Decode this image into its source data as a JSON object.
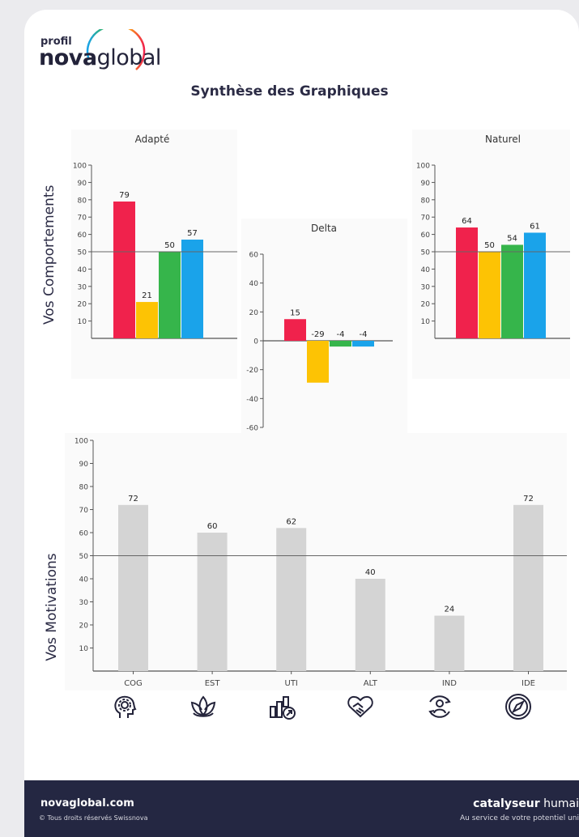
{
  "brand": {
    "small": "profil",
    "name_bold": "nova",
    "name_light": "global"
  },
  "title": "Synthèse des Graphiques",
  "ylabel_top": "Vos Comportements",
  "ylabel_bottom": "Vos Motivations",
  "colors": {
    "red": "#f0224c",
    "yellow": "#fdc304",
    "green": "#36b54b",
    "blue": "#1aa3ea",
    "grey": "#d4d4d4",
    "navy": "#242742"
  },
  "chart_data": [
    {
      "type": "bar",
      "title": "Adapté",
      "values": [
        79,
        21,
        50,
        57
      ],
      "colors": [
        "#f0224c",
        "#fdc304",
        "#36b54b",
        "#1aa3ea"
      ],
      "ylim": [
        0,
        100
      ],
      "yticks": [
        10,
        20,
        30,
        40,
        50,
        60,
        70,
        80,
        90,
        100
      ],
      "reference_line": 50
    },
    {
      "type": "bar",
      "title": "Delta",
      "values": [
        15,
        -29,
        -4,
        -4
      ],
      "colors": [
        "#f0224c",
        "#fdc304",
        "#36b54b",
        "#1aa3ea"
      ],
      "ylim": [
        -60,
        60
      ],
      "yticks": [
        -60,
        -40,
        -20,
        0,
        20,
        40,
        60
      ],
      "reference_line": 0
    },
    {
      "type": "bar",
      "title": "Naturel",
      "values": [
        64,
        50,
        54,
        61
      ],
      "colors": [
        "#f0224c",
        "#fdc304",
        "#36b54b",
        "#1aa3ea"
      ],
      "ylim": [
        0,
        100
      ],
      "yticks": [
        10,
        20,
        30,
        40,
        50,
        60,
        70,
        80,
        90,
        100
      ],
      "reference_line": 50
    },
    {
      "type": "bar",
      "title": "",
      "categories": [
        "COG",
        "EST",
        "UTI",
        "ALT",
        "IND",
        "IDE"
      ],
      "values": [
        72,
        60,
        62,
        40,
        24,
        72
      ],
      "colors": [
        "#d4d4d4"
      ],
      "ylim": [
        0,
        100
      ],
      "yticks": [
        10,
        20,
        30,
        40,
        50,
        60,
        70,
        80,
        90,
        100
      ],
      "reference_line": 50
    }
  ],
  "icons": [
    "head-gear-icon",
    "lotus-icon",
    "growth-chart-icon",
    "handshake-heart-icon",
    "person-cycle-icon",
    "compass-icon"
  ],
  "footer": {
    "site": "novaglobal.com",
    "copyright": "© Tous droits réservés Swissnova",
    "tagline_bold": "catalyseur",
    "tagline_light": "humai",
    "subtitle": "Au service de votre potentiel uni"
  }
}
